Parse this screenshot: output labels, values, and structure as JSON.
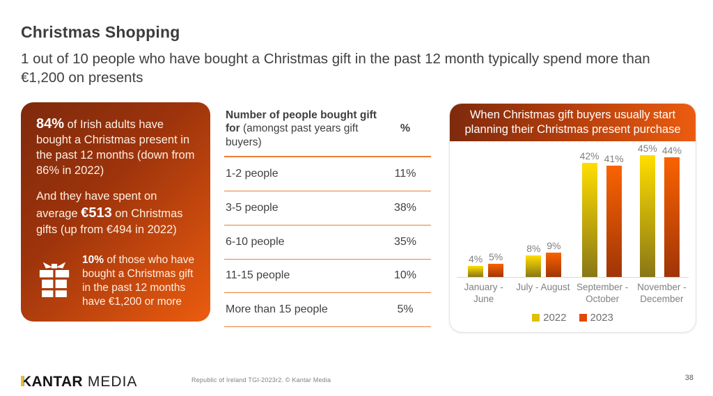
{
  "slide": {
    "title": "Christmas Shopping",
    "subtitle": "1 out of 10 people who have bought a Christmas gift in the past 12 month typically spend more than €1,200 on presents",
    "page_number": "38"
  },
  "highlight_box": {
    "para1_bold": "84%",
    "para1_rest": " of Irish adults have bought a Christmas present in the past 12 months (down from 86% in 2022)",
    "para2_pre": "And they have spent on average ",
    "para2_bold": "€513",
    "para2_post": " on Christmas gifts (up from €494 in 2022)",
    "para3_bold": "10%",
    "para3_rest": " of those who have bought a Christmas gift in the past 12 months have €1,200 or more",
    "gradient_from": "#7E2A0D",
    "gradient_to": "#EC5C0F"
  },
  "icons": {
    "gift": "gift-icon"
  },
  "table": {
    "header_bold": "Number of people bought gift for",
    "header_normal": " (amongst past years gift buyers)",
    "header_pct": "%",
    "line_color": "#ED7D31",
    "rows": [
      {
        "label": "1-2 people",
        "value": "11%"
      },
      {
        "label": "3-5 people",
        "value": "38%"
      },
      {
        "label": "6-10 people",
        "value": "35%"
      },
      {
        "label": "11-15 people",
        "value": "10%"
      },
      {
        "label": "More than 15 people",
        "value": "5%"
      }
    ]
  },
  "chart_card": {
    "title": "When Christmas gift buyers usually start planning their Christmas present purchase"
  },
  "chart_data": {
    "type": "bar",
    "title": "When Christmas gift buyers usually start planning their Christmas present purchase",
    "categories": [
      "January - June",
      "July - August",
      "September - October",
      "November - December"
    ],
    "series": [
      {
        "name": "2022",
        "values": [
          4,
          8,
          42,
          45
        ],
        "color_top": "#FFDE00",
        "color_bottom": "#897717",
        "legend_color": "#E0C000"
      },
      {
        "name": "2023",
        "values": [
          5,
          9,
          41,
          44
        ],
        "color_top": "#F96300",
        "color_bottom": "#A03508",
        "legend_color": "#E1470A"
      }
    ],
    "value_suffix": "%",
    "ylim": [
      0,
      50
    ],
    "grid": false,
    "data_labels": true,
    "legend_position": "bottom"
  },
  "footer": {
    "logo_kantar": "KANTAR",
    "logo_media": "MEDIA",
    "source": "Republic of Ireland TGI-2023r2. © Kantar Media"
  }
}
